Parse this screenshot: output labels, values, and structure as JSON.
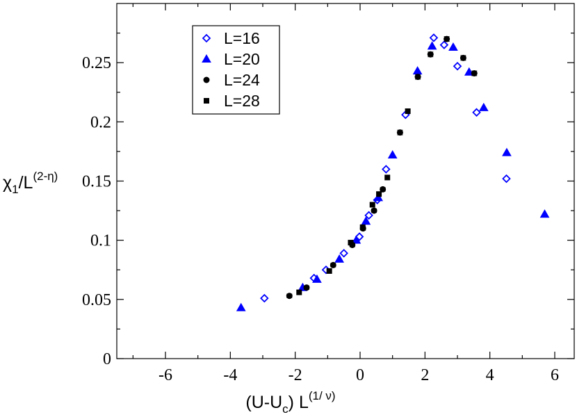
{
  "chart_data": {
    "type": "scatter",
    "xlabel": "(U-U_c) L^(1/ν)",
    "xlabel_parts": {
      "base": "(U-U",
      "sub": "c",
      "mid": ") L",
      "sup": "(1/ ν)"
    },
    "ylabel": "χ_1/L^(2-η)",
    "ylabel_parts": {
      "base": "χ",
      "sub": "1",
      "mid": "/L",
      "sup": "(2-η)"
    },
    "xlim": [
      -7.5,
      6.6
    ],
    "ylim": [
      0,
      0.3
    ],
    "xticks": [
      -6,
      -4,
      -2,
      0,
      2,
      4,
      6
    ],
    "xtick_labels": [
      "-6",
      "-4",
      "-2",
      "0",
      "2",
      "4",
      "6"
    ],
    "yticks": [
      0,
      0.05,
      0.1,
      0.15,
      0.2,
      0.25
    ],
    "ytick_labels": [
      "0",
      "0.05",
      "0.1",
      "0.15",
      "0.2",
      "0.25"
    ],
    "grid": false,
    "legend_position": "top-left",
    "series": [
      {
        "name": "L=16",
        "marker": "diamond-open",
        "color": "#0000ff",
        "x": [
          -2.95,
          -1.42,
          -1.05,
          -0.5,
          -0.02,
          0.27,
          0.53,
          0.8,
          1.4,
          2.27,
          2.59,
          3.0,
          3.59,
          4.51
        ],
        "y": [
          0.051,
          0.068,
          0.075,
          0.089,
          0.103,
          0.121,
          0.134,
          0.16,
          0.206,
          0.271,
          0.265,
          0.247,
          0.208,
          0.152
        ]
      },
      {
        "name": "L=20",
        "marker": "triangle-filled",
        "color": "#0000ff",
        "x": [
          -3.67,
          -1.77,
          -1.33,
          -0.64,
          -0.12,
          0.18,
          0.56,
          1.0,
          1.77,
          2.22,
          2.87,
          3.36,
          3.81,
          4.52,
          5.69
        ],
        "y": [
          0.043,
          0.06,
          0.067,
          0.084,
          0.1,
          0.116,
          0.136,
          0.172,
          0.243,
          0.264,
          0.263,
          0.242,
          0.212,
          0.174,
          0.122
        ]
      },
      {
        "name": "L=24",
        "marker": "circle-filled",
        "color": "#000000",
        "x": [
          -2.18,
          -1.65,
          -0.83,
          -0.24,
          0.09,
          0.43,
          0.7,
          1.23,
          1.78,
          2.17,
          2.67,
          3.18,
          3.52
        ],
        "y": [
          0.053,
          0.06,
          0.079,
          0.096,
          0.11,
          0.125,
          0.143,
          0.191,
          0.238,
          0.257,
          0.27,
          0.254,
          0.241
        ],
        "error": [
          0.0015,
          0.0015,
          0.0015,
          0.0015,
          0.0015,
          0.0015,
          0.0015,
          0.002,
          0.002,
          0.002,
          0.002,
          0.002,
          0.002
        ]
      },
      {
        "name": "L=28",
        "marker": "square-filled",
        "color": "#000000",
        "x": [
          -1.88,
          -0.95,
          -0.29,
          0.08,
          0.38,
          0.58,
          0.84,
          1.47
        ],
        "y": [
          0.056,
          0.074,
          0.098,
          0.111,
          0.13,
          0.139,
          0.153,
          0.209
        ]
      }
    ]
  }
}
